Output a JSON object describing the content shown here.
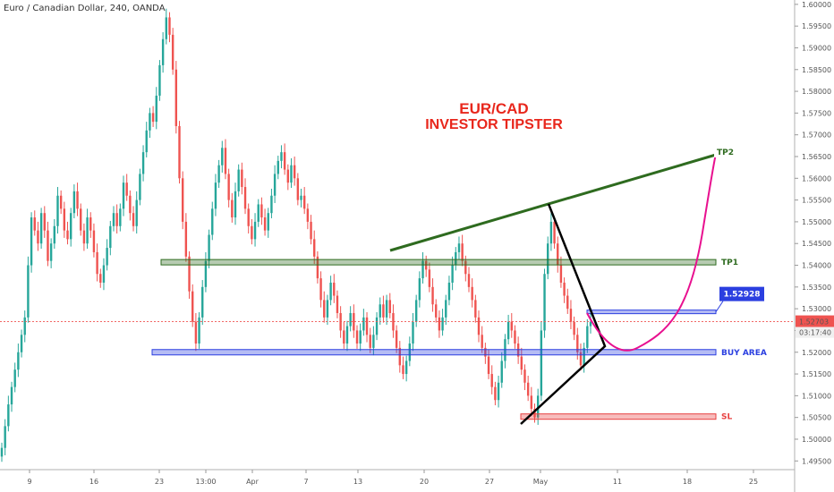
{
  "header": {
    "symbol": "Euro / Canadian Dollar, 240, OANDA"
  },
  "annotation": {
    "title_line1": "EUR/CAD",
    "title_line2": "INVESTOR TIPSTER"
  },
  "colors": {
    "up": "#26a69a",
    "down": "#ef5350",
    "green": "#2e6b1f",
    "blue": "#2b3fe0",
    "red": "#e84040",
    "magenta": "#e8108f",
    "black": "#000000"
  },
  "chart_data": {
    "type": "candlestick",
    "y_ticks": [
      "1.60000",
      "1.59500",
      "1.59000",
      "1.58500",
      "1.58000",
      "1.57500",
      "1.57000",
      "1.56500",
      "1.56000",
      "1.55500",
      "1.55000",
      "1.54500",
      "1.54000",
      "1.53500",
      "1.53000",
      "1.52500",
      "1.52000",
      "1.51500",
      "1.51000",
      "1.50500",
      "1.50000",
      "1.49500"
    ],
    "x_ticks": [
      "9",
      "16",
      "23",
      "13:00",
      "Apr",
      "7",
      "13",
      "20",
      "27",
      "May",
      "11",
      "18",
      "25"
    ],
    "ylim": [
      1.493,
      1.601
    ],
    "last_price": "1.52703",
    "countdown": "03:17:40",
    "levels": [
      {
        "name": "TP1",
        "price": 1.5407,
        "color": "green"
      },
      {
        "name": "BUY AREA",
        "price": 1.52,
        "color": "blue"
      },
      {
        "name": "SL",
        "price": 1.5052,
        "color": "red"
      }
    ],
    "callout": {
      "label": "1.52928",
      "price": 1.52928
    },
    "tp2_label": "TP2",
    "series": [
      1.498,
      1.503,
      1.508,
      1.512,
      1.516,
      1.52,
      1.524,
      1.528,
      1.54,
      1.551,
      1.548,
      1.545,
      1.552,
      1.548,
      1.541,
      1.545,
      1.549,
      1.556,
      1.553,
      1.548,
      1.546,
      1.552,
      1.557,
      1.553,
      1.548,
      1.545,
      1.551,
      1.548,
      1.543,
      1.538,
      1.536,
      1.54,
      1.544,
      1.549,
      1.552,
      1.549,
      1.553,
      1.559,
      1.556,
      1.552,
      1.549,
      1.555,
      1.561,
      1.566,
      1.571,
      1.575,
      1.573,
      1.579,
      1.586,
      1.592,
      1.597,
      1.593,
      1.585,
      1.572,
      1.56,
      1.55,
      1.542,
      1.534,
      1.527,
      1.522,
      1.528,
      1.535,
      1.541,
      1.547,
      1.553,
      1.559,
      1.563,
      1.567,
      1.561,
      1.555,
      1.551,
      1.557,
      1.562,
      1.558,
      1.553,
      1.549,
      1.546,
      1.55,
      1.554,
      1.551,
      1.548,
      1.552,
      1.556,
      1.561,
      1.564,
      1.566,
      1.562,
      1.559,
      1.563,
      1.56,
      1.555,
      1.556,
      1.553,
      1.55,
      1.546,
      1.542,
      1.537,
      1.532,
      1.528,
      1.532,
      1.536,
      1.533,
      1.529,
      1.525,
      1.522,
      1.526,
      1.529,
      1.525,
      1.522,
      1.525,
      1.528,
      1.524,
      1.521,
      1.524,
      1.528,
      1.531,
      1.528,
      1.532,
      1.529,
      1.525,
      1.521,
      1.517,
      1.515,
      1.518,
      1.522,
      1.527,
      1.532,
      1.537,
      1.541,
      1.539,
      1.535,
      1.531,
      1.528,
      1.525,
      1.528,
      1.532,
      1.536,
      1.54,
      1.543,
      1.545,
      1.541,
      1.538,
      1.535,
      1.532,
      1.528,
      1.524,
      1.521,
      1.519,
      1.515,
      1.512,
      1.509,
      1.513,
      1.518,
      1.523,
      1.527,
      1.525,
      1.522,
      1.519,
      1.516,
      1.513,
      1.51,
      1.507,
      1.505,
      1.51,
      1.525,
      1.538,
      1.545,
      1.55,
      1.545,
      1.54,
      1.536,
      1.533,
      1.53,
      1.527,
      1.524,
      1.52,
      1.517,
      1.521,
      1.526,
      1.527
    ]
  }
}
